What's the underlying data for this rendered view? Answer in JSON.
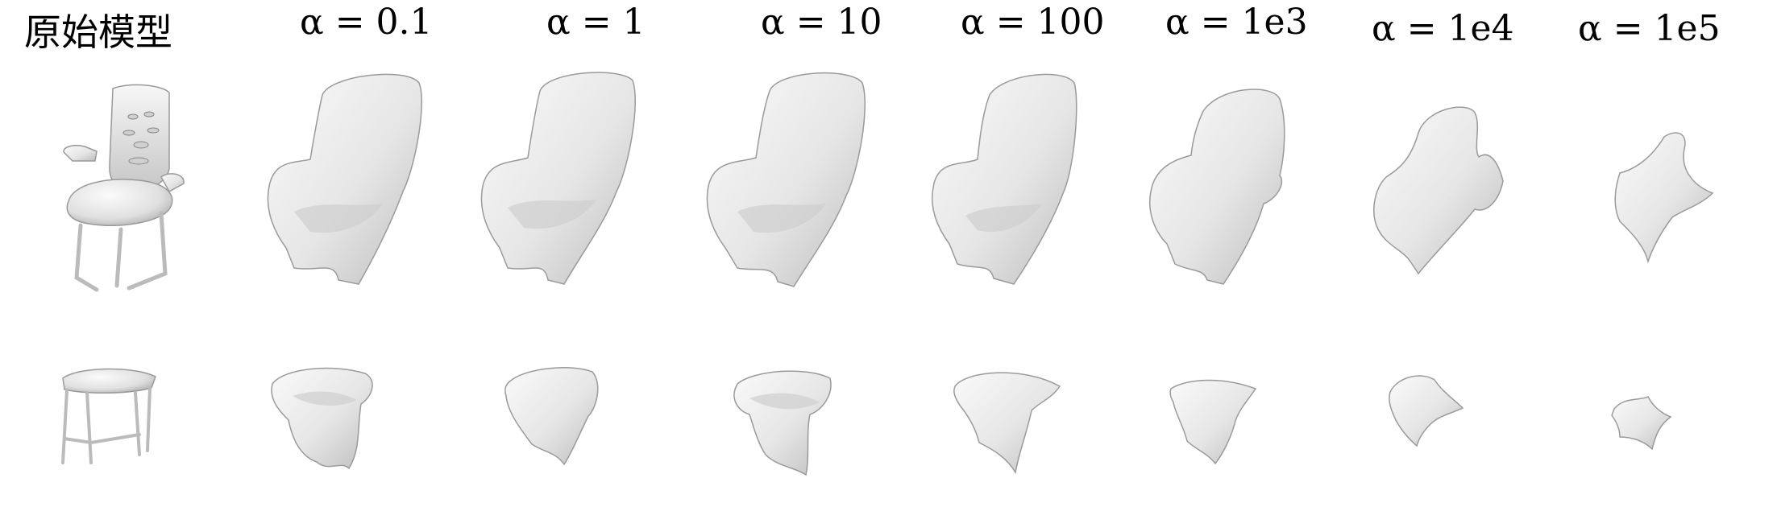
{
  "columns": [
    {
      "label": "原始模型"
    },
    {
      "label": "α = 0.1"
    },
    {
      "label": "α = 1"
    },
    {
      "label": "α = 10"
    },
    {
      "label": "α = 100"
    },
    {
      "label": "α = 1e3"
    },
    {
      "label": "α = 1e4"
    },
    {
      "label": "α = 1e5"
    }
  ],
  "rows": [
    {
      "name": "chair",
      "shapes": [
        "original-chair",
        "chair-0.1",
        "chair-1",
        "chair-10",
        "chair-100",
        "chair-1e3",
        "chair-1e4",
        "chair-1e5"
      ]
    },
    {
      "name": "stool",
      "shapes": [
        "original-stool",
        "stool-0.1",
        "stool-1",
        "stool-10",
        "stool-100",
        "stool-1e3",
        "stool-1e4",
        "stool-1e5"
      ]
    }
  ],
  "colors": {
    "surface_light": "#f4f4f4",
    "surface_mid": "#dcdcdc",
    "surface_dark": "#b8b8b8",
    "outline": "#8a8a8a"
  }
}
